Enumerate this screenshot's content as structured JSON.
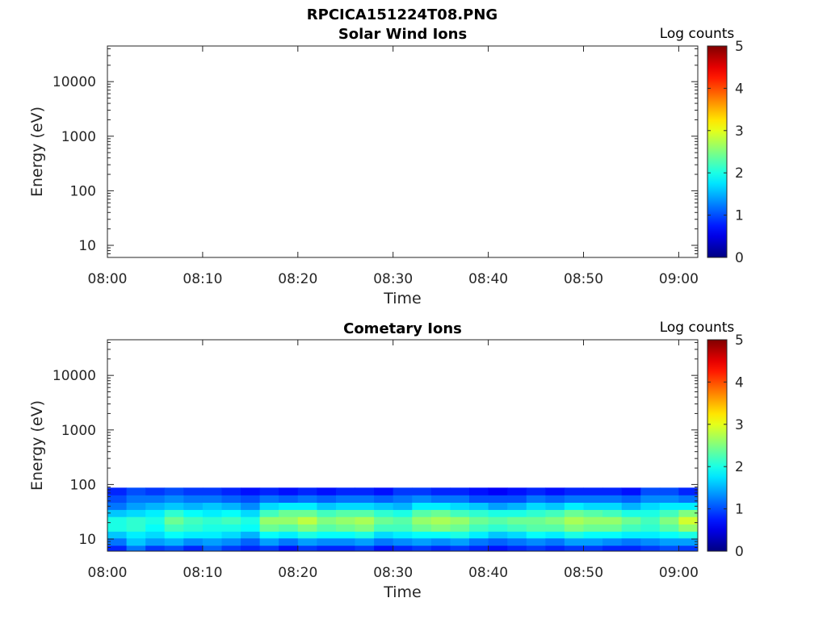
{
  "figure": {
    "title": "RPCICA151224T08.PNG"
  },
  "chart_data": [
    {
      "type": "heatmap",
      "title": "Solar Wind Ions",
      "xlabel": "Time",
      "ylabel": "Energy (eV)",
      "y_scale": "log",
      "xlim": [
        "08:00",
        "09:02"
      ],
      "ylim": [
        6,
        45000
      ],
      "x_ticks": [
        "08:00",
        "08:10",
        "08:20",
        "08:30",
        "08:40",
        "08:50",
        "09:00"
      ],
      "y_ticks": [
        10,
        100,
        1000,
        10000
      ],
      "y_tick_labels": [
        "10",
        "100",
        "1000",
        "10000"
      ],
      "colorbar": {
        "label": "Log counts",
        "range": [
          0,
          5
        ],
        "ticks": [
          "0",
          "1",
          "2",
          "3",
          "4",
          "5"
        ],
        "colormap": "jet"
      },
      "cells": []
    },
    {
      "type": "heatmap",
      "title": "Cometary Ions",
      "xlabel": "Time",
      "ylabel": "Energy (eV)",
      "y_scale": "log",
      "xlim": [
        "08:00",
        "09:02"
      ],
      "ylim": [
        6,
        45000
      ],
      "x_ticks": [
        "08:00",
        "08:10",
        "08:20",
        "08:30",
        "08:40",
        "08:50",
        "09:00"
      ],
      "y_ticks": [
        10,
        100,
        1000,
        10000
      ],
      "y_tick_labels": [
        "10",
        "100",
        "1000",
        "10000"
      ],
      "colorbar": {
        "label": "Log counts",
        "range": [
          0,
          5
        ],
        "ticks": [
          "0",
          "1",
          "2",
          "3",
          "4",
          "5"
        ],
        "colormap": "jet"
      },
      "energy_bins": [
        6.5,
        9,
        12,
        16,
        22,
        30,
        40,
        55,
        75
      ],
      "time_step_min": 2,
      "cells": [
        {
          "t": "08:00",
          "v": [
            0.8,
            1.2,
            1.6,
            2.0,
            2.0,
            1.6,
            1.2,
            1.0,
            0.8
          ]
        },
        {
          "t": "08:02",
          "v": [
            1.2,
            1.6,
            1.8,
            2.1,
            2.1,
            1.7,
            1.4,
            1.2,
            1.0
          ]
        },
        {
          "t": "08:04",
          "v": [
            0.9,
            1.4,
            1.7,
            1.9,
            2.0,
            1.8,
            1.5,
            1.2,
            0.9
          ]
        },
        {
          "t": "08:06",
          "v": [
            1.0,
            1.5,
            1.9,
            2.2,
            2.4,
            2.1,
            1.6,
            1.3,
            1.0
          ]
        },
        {
          "t": "08:08",
          "v": [
            0.8,
            1.3,
            1.8,
            2.1,
            2.2,
            1.9,
            1.5,
            1.2,
            0.9
          ]
        },
        {
          "t": "08:10",
          "v": [
            1.1,
            1.4,
            1.8,
            2.0,
            2.1,
            1.8,
            1.6,
            1.2,
            0.9
          ]
        },
        {
          "t": "08:12",
          "v": [
            0.9,
            1.3,
            1.7,
            2.0,
            2.2,
            1.9,
            1.5,
            1.1,
            0.8
          ]
        },
        {
          "t": "08:14",
          "v": [
            0.8,
            1.1,
            1.5,
            1.9,
            2.0,
            1.7,
            1.3,
            1.0,
            0.7
          ]
        },
        {
          "t": "08:16",
          "v": [
            0.9,
            1.4,
            1.9,
            2.4,
            2.6,
            2.2,
            1.7,
            1.2,
            0.8
          ]
        },
        {
          "t": "08:18",
          "v": [
            0.7,
            1.2,
            1.8,
            2.3,
            2.6,
            2.4,
            1.8,
            1.1,
            0.7
          ]
        },
        {
          "t": "08:20",
          "v": [
            0.9,
            1.4,
            2.0,
            2.5,
            2.8,
            2.4,
            1.8,
            1.2,
            0.8
          ]
        },
        {
          "t": "08:22",
          "v": [
            0.8,
            1.3,
            1.9,
            2.3,
            2.5,
            2.2,
            1.6,
            1.1,
            0.7
          ]
        },
        {
          "t": "08:24",
          "v": [
            0.8,
            1.3,
            1.9,
            2.4,
            2.6,
            2.3,
            1.7,
            1.2,
            0.8
          ]
        },
        {
          "t": "08:26",
          "v": [
            0.9,
            1.4,
            2.0,
            2.5,
            2.7,
            2.3,
            1.7,
            1.2,
            0.8
          ]
        },
        {
          "t": "08:28",
          "v": [
            0.7,
            1.2,
            1.7,
            2.2,
            2.4,
            2.1,
            1.6,
            1.1,
            0.7
          ]
        },
        {
          "t": "08:30",
          "v": [
            0.8,
            1.3,
            1.8,
            2.2,
            2.3,
            2.0,
            1.5,
            1.2,
            0.9
          ]
        },
        {
          "t": "08:32",
          "v": [
            0.9,
            1.4,
            1.9,
            2.4,
            2.6,
            2.3,
            1.8,
            1.3,
            0.9
          ]
        },
        {
          "t": "08:34",
          "v": [
            0.8,
            1.3,
            1.9,
            2.5,
            2.7,
            2.4,
            1.8,
            1.2,
            0.8
          ]
        },
        {
          "t": "08:36",
          "v": [
            0.9,
            1.4,
            2.0,
            2.4,
            2.6,
            2.2,
            1.7,
            1.2,
            0.8
          ]
        },
        {
          "t": "08:38",
          "v": [
            0.8,
            1.2,
            1.8,
            2.2,
            2.4,
            2.1,
            1.6,
            1.0,
            0.7
          ]
        },
        {
          "t": "08:40",
          "v": [
            0.7,
            1.1,
            1.6,
            2.1,
            2.3,
            2.0,
            1.4,
            1.0,
            0.6
          ]
        },
        {
          "t": "08:42",
          "v": [
            0.8,
            1.2,
            1.7,
            2.2,
            2.4,
            2.0,
            1.5,
            1.0,
            0.7
          ]
        },
        {
          "t": "08:44",
          "v": [
            0.9,
            1.3,
            1.9,
            2.3,
            2.4,
            2.1,
            1.7,
            1.2,
            0.8
          ]
        },
        {
          "t": "08:46",
          "v": [
            0.8,
            1.2,
            1.8,
            2.3,
            2.5,
            2.2,
            1.6,
            1.1,
            0.7
          ]
        },
        {
          "t": "08:48",
          "v": [
            0.9,
            1.4,
            2.0,
            2.5,
            2.7,
            2.4,
            1.8,
            1.2,
            0.8
          ]
        },
        {
          "t": "08:50",
          "v": [
            0.9,
            1.4,
            1.9,
            2.4,
            2.6,
            2.3,
            1.7,
            1.2,
            0.8
          ]
        },
        {
          "t": "08:52",
          "v": [
            0.8,
            1.3,
            1.9,
            2.4,
            2.6,
            2.2,
            1.7,
            1.2,
            0.8
          ]
        },
        {
          "t": "08:54",
          "v": [
            0.8,
            1.2,
            1.8,
            2.2,
            2.4,
            2.0,
            1.5,
            1.1,
            0.7
          ]
        },
        {
          "t": "08:56",
          "v": [
            0.9,
            1.3,
            1.8,
            2.1,
            2.2,
            2.0,
            1.7,
            1.3,
            1.0
          ]
        },
        {
          "t": "08:58",
          "v": [
            1.0,
            1.4,
            1.9,
            2.3,
            2.5,
            2.2,
            1.8,
            1.3,
            1.0
          ]
        },
        {
          "t": "09:00",
          "v": [
            0.9,
            1.4,
            2.0,
            2.6,
            2.9,
            2.5,
            1.8,
            1.2,
            0.8
          ]
        }
      ]
    }
  ]
}
